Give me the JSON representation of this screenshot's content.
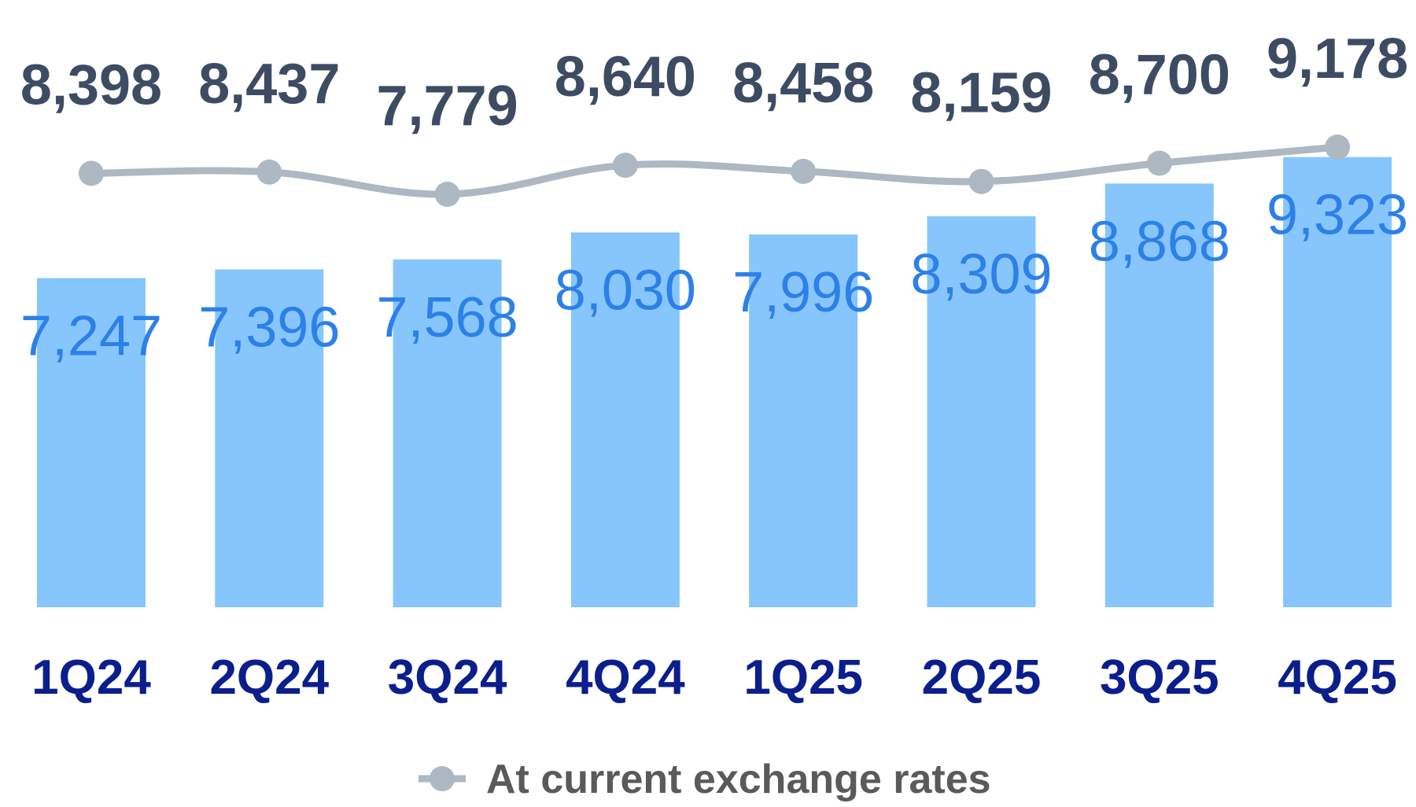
{
  "chart_data": {
    "type": "bar",
    "categories": [
      "1Q24",
      "2Q24",
      "3Q24",
      "4Q24",
      "1Q25",
      "2Q25",
      "3Q25",
      "4Q25"
    ],
    "series": [
      {
        "type": "bar",
        "values": [
          7247,
          7396,
          7568,
          8030,
          7996,
          8309,
          8868,
          9323
        ],
        "labels": [
          "7,247",
          "7,396",
          "7,568",
          "8,030",
          "7,996",
          "8,309",
          "8,868",
          "9,323"
        ],
        "color": "#86C6FC",
        "label_color": "#2D80E8"
      },
      {
        "type": "line",
        "name": "At current exchange rates",
        "values": [
          8398,
          8437,
          7779,
          8640,
          8458,
          8159,
          8700,
          9178
        ],
        "labels": [
          "8,398",
          "8,437",
          "7,779",
          "8,640",
          "8,458",
          "8,159",
          "8,700",
          "9,178"
        ],
        "color": "#AEB8C2",
        "label_color": "#3D4B63"
      }
    ],
    "category_color": "#0B1E8C",
    "legend_color": "#5A5A5A",
    "legend_position": "bottom"
  }
}
